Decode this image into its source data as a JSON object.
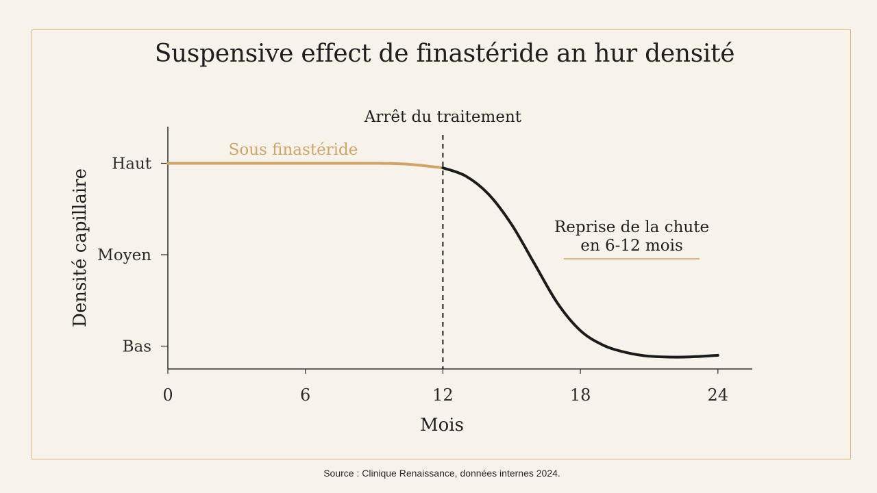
{
  "title": "Suspensive effect de finastéride an hur densité",
  "source": "Source : Clinique Renaissance, données internes 2024.",
  "colors": {
    "on_treatment": "#cda56a",
    "after_stop": "#1b1b1b",
    "frame": "#d7b482"
  },
  "chart_data": {
    "type": "line",
    "title": "Suspensive effect de finastéride an hur densité",
    "xlabel": "Mois",
    "ylabel": "Densité capillaire",
    "xlim": [
      0,
      26
    ],
    "ylim": [
      0,
      4.3
    ],
    "x_ticks": [
      0,
      6,
      12,
      18,
      24
    ],
    "y_ticks": [
      {
        "label": "Haut",
        "value": 3
      },
      {
        "label": "Moyen",
        "value": 2
      },
      {
        "label": "Bas",
        "value": 1
      }
    ],
    "series": [
      {
        "name": "Sous finastéride",
        "points": [
          [
            0,
            3.0
          ],
          [
            3,
            3.0
          ],
          [
            6,
            3.0
          ],
          [
            9,
            3.0
          ],
          [
            10.5,
            2.99
          ],
          [
            12,
            2.95
          ]
        ]
      },
      {
        "name": "",
        "points": [
          [
            12,
            2.95
          ],
          [
            13,
            2.86
          ],
          [
            14,
            2.66
          ],
          [
            15,
            2.33
          ],
          [
            16,
            1.9
          ],
          [
            17,
            1.47
          ],
          [
            18,
            1.17
          ],
          [
            19,
            1.01
          ],
          [
            20,
            0.93
          ],
          [
            21,
            0.89
          ],
          [
            22.5,
            0.88
          ],
          [
            24,
            0.9
          ]
        ]
      }
    ],
    "annotations": {
      "stop_line_x": 12,
      "stop_label": "Arrêt du traitement",
      "series_label": "Sous finastéride",
      "relapse_label_line1": "Reprise de la chute",
      "relapse_label_line2": "en 6-12 mois"
    }
  }
}
